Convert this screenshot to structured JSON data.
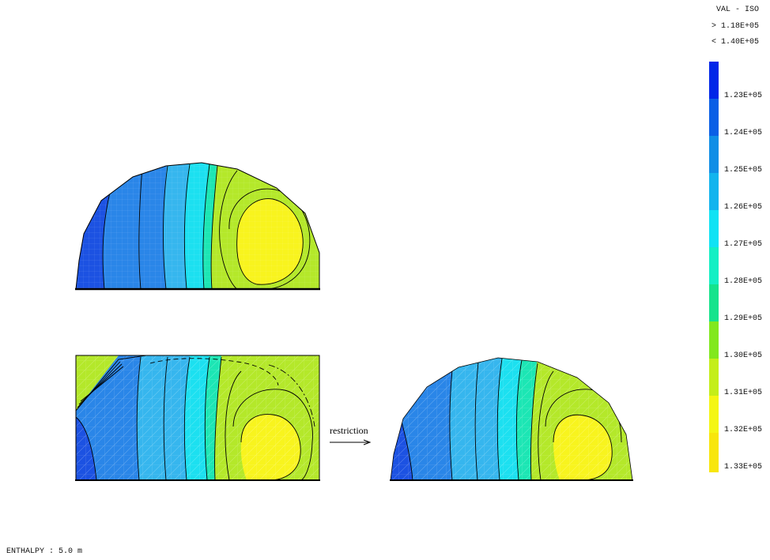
{
  "legend": {
    "title": "VAL - ISO",
    "range_max_label": "> 1.18E+05",
    "range_min_label": "< 1.40E+05",
    "levels": [
      {
        "label": "1.23E+05",
        "color": "#0026e8"
      },
      {
        "label": "1.24E+05",
        "color": "#0a5fe6"
      },
      {
        "label": "1.25E+05",
        "color": "#108ee6"
      },
      {
        "label": "1.26E+05",
        "color": "#12b4ee"
      },
      {
        "label": "1.27E+05",
        "color": "#10e2f4"
      },
      {
        "label": "1.28E+05",
        "color": "#14efc4"
      },
      {
        "label": "1.29E+05",
        "color": "#16e38c"
      },
      {
        "label": "1.30E+05",
        "color": "#82e81e"
      },
      {
        "label": "1.31E+05",
        "color": "#c4ee1a"
      },
      {
        "label": "1.32E+05",
        "color": "#f4f614"
      },
      {
        "label": "1.33E+05",
        "color": "#f8e60c"
      }
    ]
  },
  "annotation": {
    "restriction_label": "restriction"
  },
  "footer": {
    "caption": "ENTHALPY : 5.0 m"
  },
  "colors": {
    "dark_blue": "#1c52e2",
    "blue": "#2a86e8",
    "light_blue": "#36b6ee",
    "cyan": "#1ce0f0",
    "teal": "#1ce6b4",
    "green": "#7ee63a",
    "yellow_green": "#b4e82a",
    "yellow": "#f8f41e",
    "contour": "#000000"
  }
}
